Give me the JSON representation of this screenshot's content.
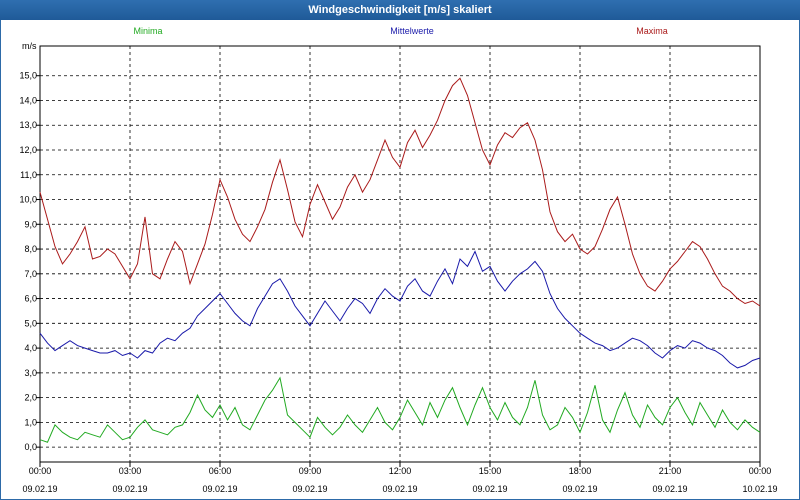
{
  "window": {
    "title": "Windgeschwindigkeit [m/s] skaliert"
  },
  "chart_data": {
    "type": "line",
    "title": "Windgeschwindigkeit [m/s] skaliert",
    "ylabel": "m/s",
    "ylim": [
      -0.6,
      16.2
    ],
    "yticks": [
      "0,0",
      "1,0",
      "2,0",
      "3,0",
      "4,0",
      "5,0",
      "6,0",
      "7,0",
      "8,0",
      "9,0",
      "10,0",
      "11,0",
      "12,0",
      "13,0",
      "14,0",
      "15,0"
    ],
    "xticks": [
      {
        "time": "00:00",
        "date": "09.02.19"
      },
      {
        "time": "03:00",
        "date": "09.02.19"
      },
      {
        "time": "06:00",
        "date": "09.02.19"
      },
      {
        "time": "09:00",
        "date": "09.02.19"
      },
      {
        "time": "12:00",
        "date": "09.02.19"
      },
      {
        "time": "15:00",
        "date": "09.02.19"
      },
      {
        "time": "18:00",
        "date": "09.02.19"
      },
      {
        "time": "21:00",
        "date": "09.02.19"
      },
      {
        "time": "00:00",
        "date": "10.02.19"
      }
    ],
    "x_hours": [
      0,
      0.25,
      0.5,
      0.75,
      1,
      1.25,
      1.5,
      1.75,
      2,
      2.25,
      2.5,
      2.75,
      3,
      3.25,
      3.5,
      3.75,
      4,
      4.25,
      4.5,
      4.75,
      5,
      5.25,
      5.5,
      5.75,
      6,
      6.25,
      6.5,
      6.75,
      7,
      7.25,
      7.5,
      7.75,
      8,
      8.25,
      8.5,
      8.75,
      9,
      9.25,
      9.5,
      9.75,
      10,
      10.25,
      10.5,
      10.75,
      11,
      11.25,
      11.5,
      11.75,
      12,
      12.25,
      12.5,
      12.75,
      13,
      13.25,
      13.5,
      13.75,
      14,
      14.25,
      14.5,
      14.75,
      15,
      15.25,
      15.5,
      15.75,
      16,
      16.25,
      16.5,
      16.75,
      17,
      17.25,
      17.5,
      17.75,
      18,
      18.25,
      18.5,
      18.75,
      19,
      19.25,
      19.5,
      19.75,
      20,
      20.25,
      20.5,
      20.75,
      21,
      21.25,
      21.5,
      21.75,
      22,
      22.25,
      22.5,
      22.75,
      23,
      23.25,
      23.5,
      23.75,
      24
    ],
    "grid": true,
    "series": [
      {
        "name": "Minima",
        "color": "#22aa22",
        "values": [
          0.3,
          0.2,
          0.9,
          0.6,
          0.4,
          0.3,
          0.6,
          0.5,
          0.4,
          0.9,
          0.6,
          0.3,
          0.4,
          0.8,
          1.1,
          0.7,
          0.6,
          0.5,
          0.8,
          0.9,
          1.4,
          2.1,
          1.5,
          1.2,
          1.7,
          1.1,
          1.6,
          0.9,
          0.7,
          1.3,
          1.9,
          2.3,
          2.8,
          1.3,
          1.0,
          0.7,
          0.4,
          1.2,
          0.8,
          0.5,
          0.8,
          1.3,
          0.9,
          0.6,
          1.1,
          1.6,
          1.0,
          0.7,
          1.2,
          1.9,
          1.4,
          0.9,
          1.8,
          1.2,
          1.9,
          2.4,
          1.6,
          0.9,
          1.7,
          2.4,
          1.6,
          1.1,
          1.8,
          1.2,
          0.9,
          1.6,
          2.7,
          1.3,
          0.7,
          0.9,
          1.6,
          1.2,
          0.6,
          1.4,
          2.5,
          1.1,
          0.6,
          1.5,
          2.2,
          1.3,
          0.8,
          1.7,
          1.2,
          0.9,
          1.6,
          2.0,
          1.4,
          0.9,
          1.8,
          1.3,
          0.8,
          1.5,
          1.0,
          0.7,
          1.1,
          0.8,
          0.6
        ]
      },
      {
        "name": "Mittelwerte",
        "color": "#1a1aaa",
        "values": [
          4.6,
          4.2,
          3.9,
          4.1,
          4.3,
          4.1,
          4.0,
          3.9,
          3.8,
          3.8,
          3.9,
          3.7,
          3.8,
          3.6,
          3.9,
          3.8,
          4.2,
          4.4,
          4.3,
          4.6,
          4.8,
          5.3,
          5.6,
          5.9,
          6.2,
          5.8,
          5.4,
          5.1,
          4.9,
          5.6,
          6.1,
          6.6,
          6.8,
          6.3,
          5.7,
          5.3,
          4.9,
          5.4,
          5.9,
          5.5,
          5.1,
          5.6,
          6.0,
          5.8,
          5.4,
          6.0,
          6.4,
          6.1,
          5.9,
          6.5,
          6.8,
          6.3,
          6.1,
          6.7,
          7.2,
          6.6,
          7.6,
          7.3,
          7.9,
          7.1,
          7.3,
          6.7,
          6.3,
          6.7,
          7.0,
          7.2,
          7.5,
          7.1,
          6.2,
          5.6,
          5.2,
          4.9,
          4.6,
          4.4,
          4.2,
          4.1,
          3.9,
          4.0,
          4.2,
          4.4,
          4.3,
          4.1,
          3.8,
          3.6,
          3.9,
          4.1,
          4.0,
          4.3,
          4.2,
          4.0,
          3.9,
          3.7,
          3.4,
          3.2,
          3.3,
          3.5,
          3.6
        ]
      },
      {
        "name": "Maxima",
        "color": "#aa1a1a",
        "values": [
          10.3,
          9.2,
          8.1,
          7.4,
          7.8,
          8.3,
          8.9,
          7.6,
          7.7,
          8.0,
          7.8,
          7.3,
          6.8,
          7.4,
          9.3,
          7.0,
          6.8,
          7.6,
          8.3,
          7.9,
          6.6,
          7.4,
          8.2,
          9.4,
          10.8,
          10.1,
          9.2,
          8.6,
          8.3,
          8.9,
          9.6,
          10.7,
          11.6,
          10.4,
          9.1,
          8.5,
          9.8,
          10.6,
          9.9,
          9.2,
          9.7,
          10.5,
          11.0,
          10.3,
          10.8,
          11.6,
          12.4,
          11.7,
          11.3,
          12.3,
          12.8,
          12.1,
          12.6,
          13.2,
          14.0,
          14.6,
          14.9,
          14.2,
          13.1,
          12.0,
          11.4,
          12.2,
          12.7,
          12.5,
          12.9,
          13.1,
          12.4,
          11.2,
          9.5,
          8.7,
          8.3,
          8.6,
          8.0,
          7.8,
          8.1,
          8.8,
          9.6,
          10.1,
          9.0,
          7.8,
          7.0,
          6.5,
          6.3,
          6.7,
          7.2,
          7.5,
          7.9,
          8.3,
          8.1,
          7.6,
          7.0,
          6.5,
          6.3,
          6.0,
          5.8,
          5.9,
          5.7
        ]
      }
    ]
  }
}
